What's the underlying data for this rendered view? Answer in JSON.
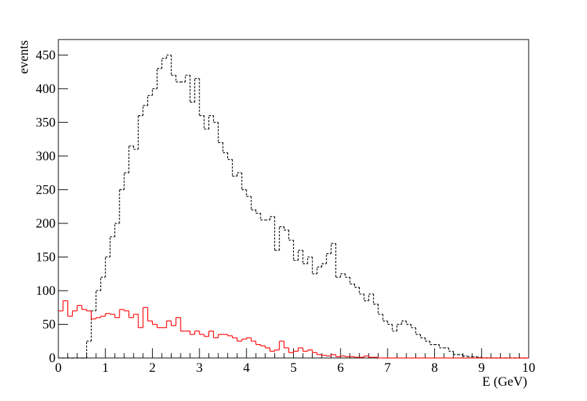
{
  "chart_data": {
    "type": "histogram",
    "xlabel": "E (GeV)",
    "ylabel": "events",
    "bins": [
      0,
      0.1,
      0.2,
      0.3,
      0.4,
      0.5,
      0.6,
      0.7,
      0.8,
      0.9,
      1,
      1.1,
      1.2,
      1.3,
      1.4,
      1.5,
      1.6,
      1.7,
      1.8,
      1.9,
      2,
      2.1,
      2.2,
      2.3,
      2.4,
      2.5,
      2.6,
      2.7,
      2.8,
      2.9,
      3,
      3.1,
      3.2,
      3.3,
      3.4,
      3.5,
      3.6,
      3.7,
      3.8,
      3.9,
      4,
      4.1,
      4.2,
      4.3,
      4.4,
      4.5,
      4.6,
      4.7,
      4.8,
      4.9,
      5,
      5.1,
      5.2,
      5.3,
      5.4,
      5.5,
      5.6,
      5.7,
      5.8,
      5.9,
      6,
      6.1,
      6.2,
      6.3,
      6.4,
      6.5,
      6.6,
      6.7,
      6.8,
      6.9,
      7,
      7.1,
      7.2,
      7.3,
      7.4,
      7.5,
      7.6,
      7.7,
      7.8,
      7.9,
      8,
      8.1,
      8.2,
      8.3,
      8.4,
      8.5,
      8.6,
      8.7,
      8.8,
      8.9,
      9,
      9.1,
      9.2,
      9.3,
      9.4,
      9.5,
      9.6,
      9.7,
      9.8,
      9.9,
      10
    ],
    "series": [
      {
        "color": "#000000",
        "dashed": true,
        "values": [
          0,
          0,
          0,
          0,
          0,
          0,
          25,
          70,
          100,
          120,
          150,
          180,
          200,
          250,
          275,
          315,
          310,
          360,
          375,
          390,
          400,
          430,
          445,
          450,
          420,
          410,
          410,
          420,
          380,
          415,
          360,
          340,
          360,
          350,
          320,
          305,
          295,
          270,
          275,
          250,
          240,
          220,
          215,
          205,
          205,
          210,
          160,
          195,
          190,
          175,
          145,
          160,
          140,
          150,
          125,
          135,
          140,
          155,
          170,
          120,
          125,
          120,
          110,
          105,
          95,
          85,
          95,
          80,
          65,
          55,
          50,
          40,
          50,
          55,
          50,
          45,
          35,
          30,
          25,
          20,
          20,
          15,
          15,
          10,
          5,
          5,
          3,
          2,
          2,
          1,
          0,
          0,
          0,
          0,
          0,
          0,
          0,
          0,
          0,
          0
        ]
      },
      {
        "color": "#ff0000",
        "dashed": false,
        "values": [
          70,
          85,
          62,
          70,
          78,
          72,
          70,
          58,
          60,
          62,
          66,
          65,
          60,
          72,
          70,
          60,
          65,
          45,
          75,
          55,
          50,
          45,
          45,
          55,
          48,
          60,
          40,
          40,
          35,
          40,
          35,
          32,
          40,
          30,
          35,
          35,
          33,
          30,
          25,
          28,
          30,
          25,
          20,
          18,
          15,
          10,
          12,
          25,
          15,
          8,
          10,
          15,
          10,
          12,
          8,
          5,
          4,
          3,
          5,
          2,
          3,
          2,
          2,
          1,
          1,
          3,
          1,
          1,
          0,
          0,
          0,
          0,
          0,
          0,
          0,
          0,
          0,
          0,
          0,
          0,
          0,
          0,
          0,
          0,
          0,
          0,
          0,
          0,
          0,
          0,
          0,
          0,
          0,
          0,
          0,
          0,
          0,
          0,
          0,
          0
        ]
      }
    ],
    "xlim": [
      0,
      10
    ],
    "ylim": [
      0,
      473
    ],
    "xticks": [
      0,
      1,
      2,
      3,
      4,
      5,
      6,
      7,
      8,
      9,
      10
    ],
    "yticks": [
      0,
      50,
      100,
      150,
      200,
      250,
      300,
      350,
      400,
      450
    ]
  }
}
